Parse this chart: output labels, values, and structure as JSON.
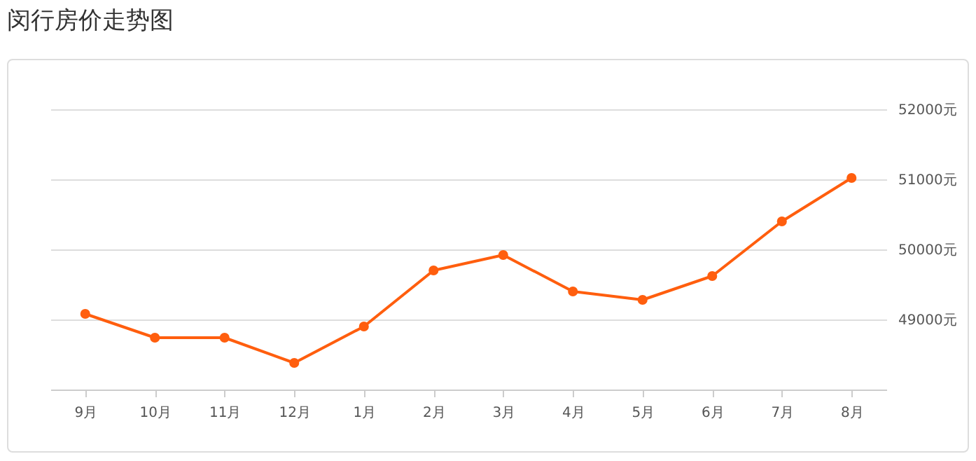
{
  "chart_data": {
    "type": "line",
    "title": "闵行房价走势图",
    "categories": [
      "9月",
      "10月",
      "11月",
      "12月",
      "1月",
      "2月",
      "3月",
      "4月",
      "5月",
      "6月",
      "7月",
      "8月"
    ],
    "series": [
      {
        "color": "#ff5e0e",
        "values": [
          49080,
          48740,
          48740,
          48380,
          48900,
          49700,
          49920,
          49400,
          49280,
          49620,
          50400,
          51020
        ]
      }
    ],
    "ylim": [
      48000,
      52000
    ],
    "yticks": [
      {
        "value": 49000,
        "label": "49000元"
      },
      {
        "value": 50000,
        "label": "50000元"
      },
      {
        "value": 51000,
        "label": "51000元"
      },
      {
        "value": 52000,
        "label": "52000元"
      }
    ],
    "grid": "y",
    "marker": "circle",
    "line_style": "solid"
  }
}
